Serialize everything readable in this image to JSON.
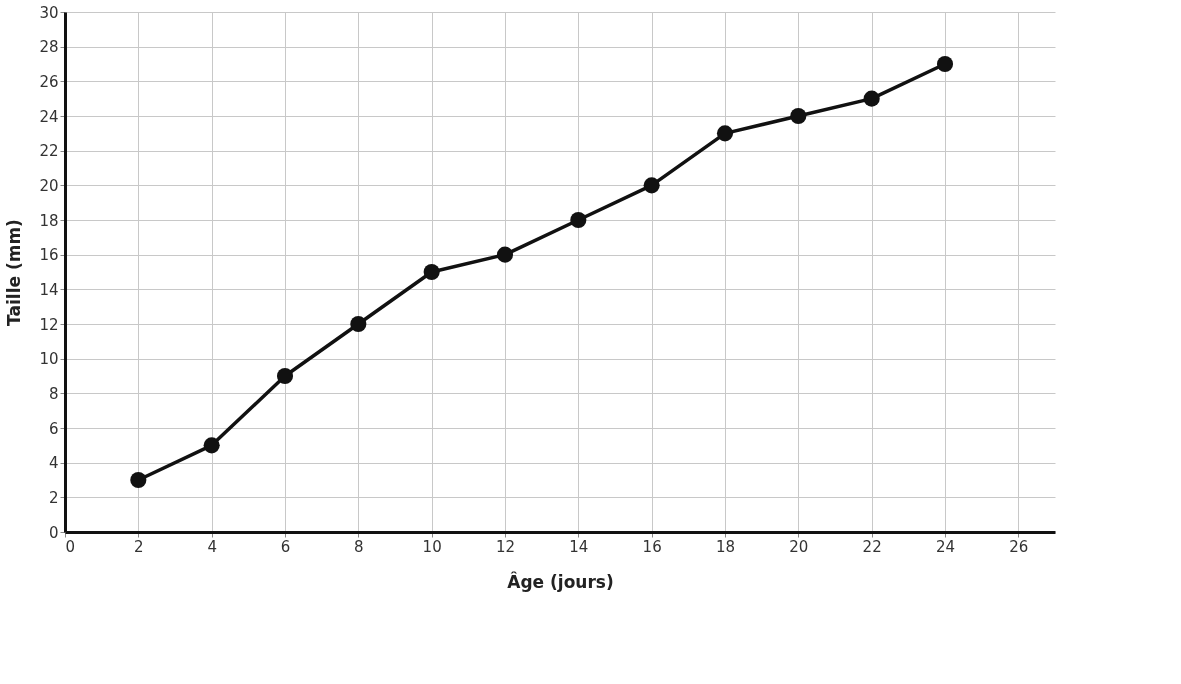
{
  "chart_data": {
    "type": "line",
    "xlabel": "Âge (jours)",
    "ylabel": "Taille (mm)",
    "x": [
      2,
      4,
      6,
      8,
      10,
      12,
      14,
      16,
      18,
      20,
      22,
      24
    ],
    "series": [
      {
        "color": "#111111",
        "values": [
          3,
          5,
          9,
          12,
          15,
          16,
          18,
          20,
          23,
          24,
          25,
          27
        ]
      }
    ],
    "xlim": [
      0,
      27
    ],
    "xticks": [
      0,
      2,
      4,
      6,
      8,
      10,
      12,
      14,
      16,
      18,
      20,
      22,
      24,
      26
    ],
    "ylim": [
      0,
      30
    ],
    "yticks": [
      0,
      2,
      4,
      6,
      8,
      10,
      12,
      14,
      16,
      18,
      20,
      22,
      24,
      26,
      28,
      30
    ],
    "grid": true,
    "marker": "circle",
    "line_style": "solid"
  }
}
